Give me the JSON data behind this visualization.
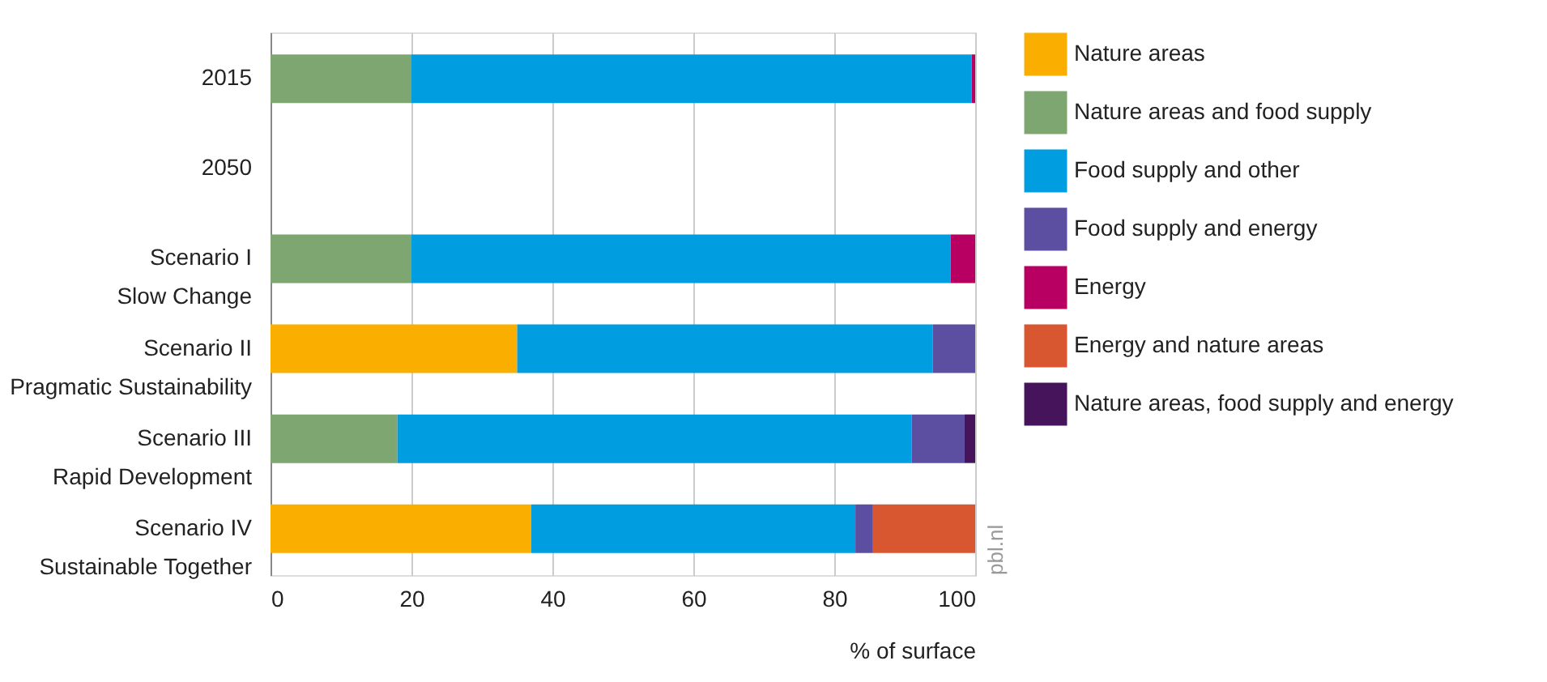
{
  "chart_data": {
    "type": "bar",
    "orientation": "horizontal",
    "stacked": true,
    "categories": [
      "2015",
      "2050",
      "Scenario I\nSlow Change",
      "Scenario II\nPragmatic Sustainability",
      "Scenario III\nRapid Development",
      "Scenario IV\nSustainable Together"
    ],
    "series": [
      {
        "name": "Nature areas",
        "color": "#f9ae00",
        "values": [
          null,
          null,
          null,
          35,
          null,
          37
        ]
      },
      {
        "name": "Nature areas and food supply",
        "color": "#7da670",
        "values": [
          20,
          null,
          20,
          null,
          18,
          null
        ]
      },
      {
        "name": "Food supply and other",
        "color": "#009ee0",
        "values": [
          79.5,
          null,
          76.5,
          59,
          73,
          46
        ]
      },
      {
        "name": "Food supply and energy",
        "color": "#5c4fa1",
        "values": [
          null,
          null,
          null,
          6,
          7.5,
          2.5
        ]
      },
      {
        "name": "Energy",
        "color": "#b70062",
        "values": [
          0.5,
          null,
          3.5,
          null,
          null,
          null
        ]
      },
      {
        "name": "Energy and nature areas",
        "color": "#d85731",
        "values": [
          null,
          null,
          null,
          null,
          null,
          14.5
        ]
      },
      {
        "name": "Nature areas, food supply and energy",
        "color": "#45145a",
        "values": [
          null,
          null,
          null,
          null,
          1.5,
          null
        ]
      }
    ],
    "xlim": [
      0,
      100
    ],
    "xticks": [
      0,
      20,
      40,
      60,
      80,
      100
    ],
    "xlabel": "% of surface",
    "grid": "x",
    "legend": "right",
    "annotations": [
      "pbl.nl"
    ]
  }
}
